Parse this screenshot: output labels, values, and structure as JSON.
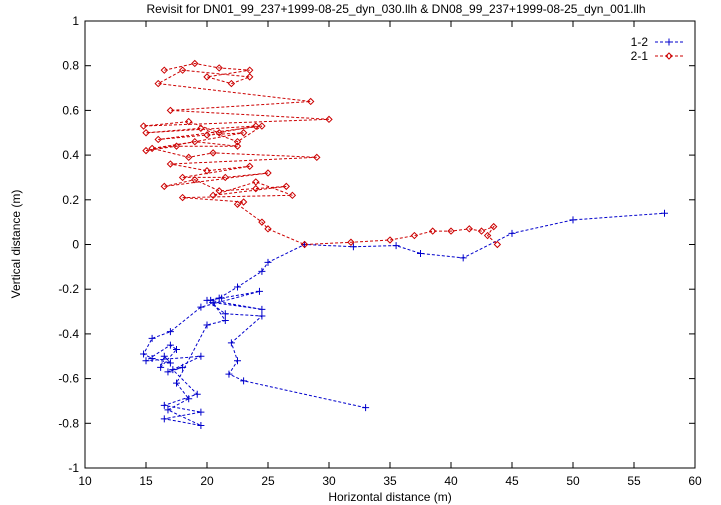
{
  "chart_data": {
    "type": "line",
    "title": "Revisit for DN01_99_237+1999-08-25_dyn_030.llh & DN08_99_237+1999-08-25_dyn_001.llh",
    "xlabel": "Horizontal distance (m)",
    "ylabel": "Vertical distance (m)",
    "xlim": [
      10,
      60
    ],
    "ylim": [
      -1,
      1
    ],
    "xticks": [
      "10",
      "15",
      "20",
      "25",
      "30",
      "35",
      "40",
      "45",
      "50",
      "55",
      "60"
    ],
    "yticks": [
      "-1",
      "-0.8",
      "-0.6",
      "-0.4",
      "-0.2",
      "0",
      "0.2",
      "0.4",
      "0.6",
      "0.8",
      "1"
    ],
    "grid": false,
    "legend_position": "top-right",
    "series": [
      {
        "name": "1-2",
        "color": "#0000cc",
        "marker": "plus",
        "x": [
          33.0,
          23.0,
          21.8,
          22.5,
          22.0,
          24.5,
          21.5,
          20.0,
          21.2,
          24.3,
          19.5,
          17.0,
          15.5,
          14.8,
          15.5,
          17.0,
          16.5,
          16.2,
          17.5,
          17.0,
          15.0,
          19.5,
          16.8,
          18.0,
          17.2,
          19.2,
          16.5,
          19.5,
          16.5,
          19.5,
          16.8,
          18.5,
          17.5,
          20.0,
          21.5,
          20.5,
          24.5,
          20.3,
          21.0,
          22.5,
          24.5,
          25.0,
          28.0,
          32.0,
          35.5,
          37.5,
          41.0,
          45.0,
          50.0,
          57.5
        ],
        "y": [
          -0.73,
          -0.61,
          -0.58,
          -0.52,
          -0.44,
          -0.32,
          -0.31,
          -0.25,
          -0.24,
          -0.21,
          -0.28,
          -0.39,
          -0.42,
          -0.49,
          -0.51,
          -0.53,
          -0.5,
          -0.55,
          -0.47,
          -0.45,
          -0.52,
          -0.5,
          -0.57,
          -0.55,
          -0.56,
          -0.67,
          -0.72,
          -0.75,
          -0.78,
          -0.81,
          -0.74,
          -0.69,
          -0.62,
          -0.36,
          -0.34,
          -0.26,
          -0.29,
          -0.25,
          -0.24,
          -0.19,
          -0.12,
          -0.08,
          0.0,
          -0.01,
          -0.005,
          -0.04,
          -0.06,
          0.05,
          0.11,
          0.14
        ]
      },
      {
        "name": "2-1",
        "color": "#cc0000",
        "marker": "diamond",
        "x": [
          16.5,
          19.0,
          21.0,
          23.5,
          20.0,
          22.0,
          23.5,
          18.0,
          16.0,
          28.5,
          17.0,
          30.0,
          14.8,
          18.5,
          21.0,
          24.0,
          15.0,
          19.5,
          22.5,
          24.5,
          16.0,
          20.0,
          23.0,
          15.0,
          17.5,
          22.5,
          19.0,
          15.5,
          18.5,
          20.5,
          29.0,
          17.0,
          20.0,
          23.5,
          18.0,
          21.5,
          25.0,
          16.5,
          19.0,
          21.0,
          24.0,
          26.5,
          20.5,
          24.0,
          27.0,
          18.0,
          23.0,
          22.5,
          24.5,
          25.0,
          28.0,
          31.8,
          35.0,
          37.0,
          38.5,
          40.0,
          41.5,
          42.5,
          43.5,
          43.0,
          43.8
        ],
        "y": [
          0.78,
          0.81,
          0.79,
          0.78,
          0.75,
          0.72,
          0.75,
          0.78,
          0.72,
          0.64,
          0.6,
          0.56,
          0.53,
          0.55,
          0.5,
          0.53,
          0.5,
          0.52,
          0.46,
          0.53,
          0.47,
          0.49,
          0.5,
          0.42,
          0.44,
          0.44,
          0.46,
          0.43,
          0.39,
          0.41,
          0.39,
          0.36,
          0.33,
          0.35,
          0.3,
          0.3,
          0.32,
          0.26,
          0.29,
          0.24,
          0.25,
          0.26,
          0.22,
          0.28,
          0.22,
          0.21,
          0.19,
          0.18,
          0.1,
          0.07,
          0.0,
          0.01,
          0.02,
          0.04,
          0.06,
          0.06,
          0.07,
          0.06,
          0.08,
          0.04,
          0.0
        ]
      }
    ]
  }
}
